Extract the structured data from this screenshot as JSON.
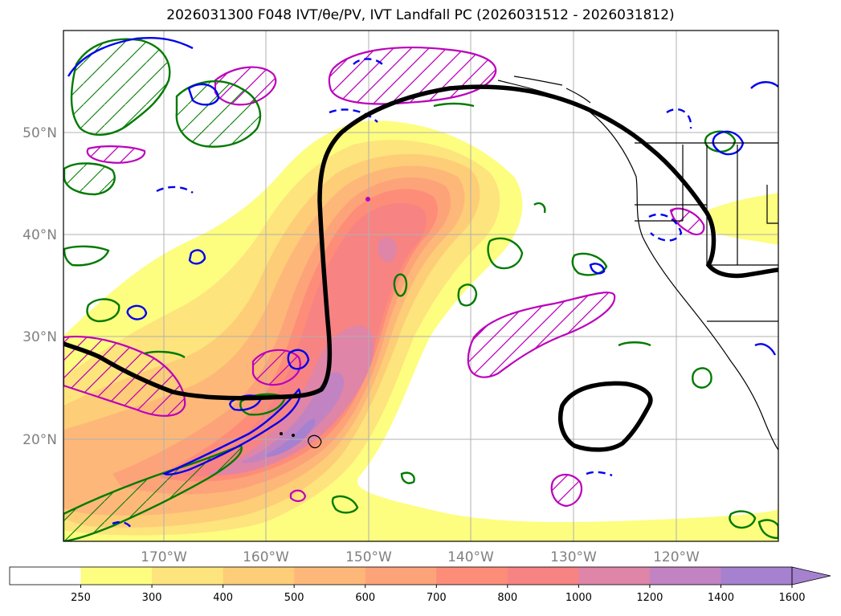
{
  "title": "2026031300 F048 IVT/θe/PV, IVT Landfall PC (2026031512 - 2026031812)",
  "map": {
    "lon_ticks": [
      {
        "lon": -170,
        "label": "170°W"
      },
      {
        "lon": -160,
        "label": "160°W"
      },
      {
        "lon": -150,
        "label": "150°W"
      },
      {
        "lon": -140,
        "label": "140°W"
      },
      {
        "lon": -130,
        "label": "130°W"
      },
      {
        "lon": -120,
        "label": "120°W"
      }
    ],
    "lat_ticks": [
      {
        "lat": 50,
        "label": "50°N"
      },
      {
        "lat": 40,
        "label": "40°N"
      },
      {
        "lat": 30,
        "label": "30°N"
      },
      {
        "lat": 20,
        "label": "20°N"
      }
    ],
    "extent": {
      "lon_min": -180,
      "lon_max": -110,
      "lat_min": 10,
      "lat_max": 60
    }
  },
  "colorbar": {
    "levels": [
      "250",
      "300",
      "400",
      "500",
      "600",
      "700",
      "800",
      "1000",
      "1200",
      "1400",
      "1600"
    ],
    "colors": [
      "#ffffff",
      "#fdfd80",
      "#fde47c",
      "#fdcd78",
      "#fdb879",
      "#fda379",
      "#fd8d79",
      "#f78383",
      "#df85a7",
      "#c283c3",
      "#a581cf"
    ],
    "extend": "max"
  },
  "colors": {
    "landfall_pc": "#000000",
    "theta_e": "#007a00",
    "pv_positive": "#0000ee",
    "hatch_region": "#bb00bb",
    "coast": "#000000",
    "grid": "#b0b0b0"
  }
}
